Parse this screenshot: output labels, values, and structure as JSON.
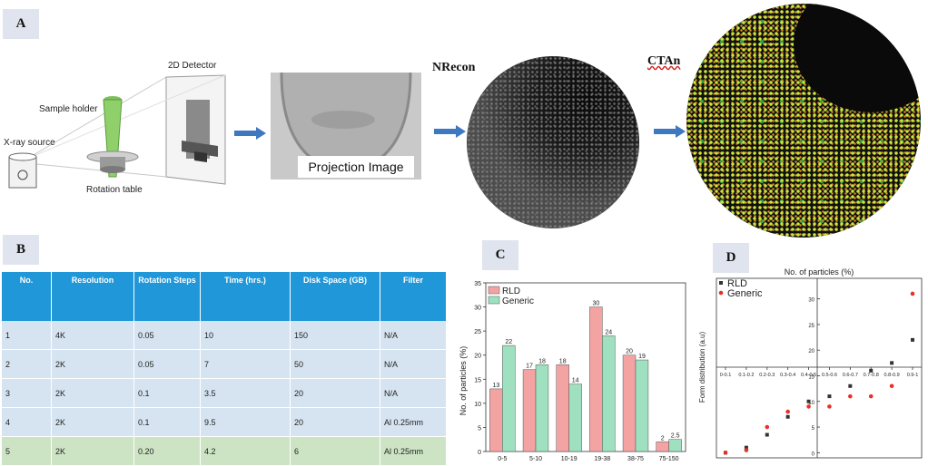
{
  "panels": {
    "a": "A",
    "b": "B",
    "c": "C",
    "d": "D"
  },
  "schematic": {
    "detector": "2D Detector",
    "sample_holder": "Sample holder",
    "xray_source": "X-ray source",
    "rotation_table": "Rotation table",
    "projection": "Projection Image",
    "nrecon": "NRecon",
    "ctan": "CTAn"
  },
  "table": {
    "headers": [
      "No.",
      "Resolution",
      "Rotation Steps",
      "Time (hrs.)",
      "Disk Space (GB)",
      "Filter"
    ],
    "rows": [
      [
        "1",
        "4K",
        "0.05",
        "10",
        "150",
        "N/A"
      ],
      [
        "2",
        "2K",
        "0.05",
        "7",
        "50",
        "N/A"
      ],
      [
        "3",
        "2K",
        "0.1",
        "3.5",
        "20",
        "N/A"
      ],
      [
        "4",
        "2K",
        "0.1",
        "9.5",
        "20",
        "Al 0.25mm"
      ],
      [
        "5",
        "2K",
        "0.20",
        "4.2",
        "6",
        "Al 0.25mm"
      ]
    ]
  },
  "chart_data": [
    {
      "type": "bar",
      "ylabel": "No. of particles (%)",
      "categories": [
        "0-5",
        "5-10",
        "10-19",
        "19-38",
        "38-75",
        "75-150"
      ],
      "ylim": [
        0,
        35
      ],
      "yticks": [
        "0",
        "5",
        "10",
        "15",
        "20",
        "25",
        "30",
        "35"
      ],
      "legend": "top-left",
      "series": [
        {
          "name": "RLD",
          "color": "#f4a3a3",
          "values": [
            13,
            17,
            18,
            30,
            20,
            2
          ],
          "labels": [
            "13",
            "17",
            "18",
            "30",
            "20",
            "2"
          ]
        },
        {
          "name": "Generic",
          "color": "#9ee0bf",
          "values": [
            22,
            18,
            14,
            24,
            19,
            2.5
          ],
          "labels": [
            "22",
            "18",
            "14",
            "24",
            "19",
            "2.5"
          ]
        }
      ]
    },
    {
      "type": "scatter",
      "title": "No. of particles (%)",
      "ylabel": "Form distribution (a.u)",
      "categories": [
        "0-0.1",
        "0.1-0.2",
        "0.2-0.3",
        "0.3-0.4",
        "0.4-0.5",
        "0.5-0.6",
        "0.6-0.7",
        "0.7-0.8",
        "0.8-0.9",
        "0.9-1"
      ],
      "yticks": [
        "0",
        "5",
        "10",
        "15",
        "20",
        "25",
        "30"
      ],
      "legend": "top-left",
      "series": [
        {
          "name": "RLD",
          "color": "#333333",
          "values": [
            0,
            1,
            3.5,
            7,
            10,
            11,
            13,
            16,
            17.5,
            22
          ]
        },
        {
          "name": "Generic",
          "color": "#e8302a",
          "values": [
            0,
            0.5,
            5,
            8,
            9,
            9,
            11,
            11,
            13,
            31
          ]
        }
      ]
    }
  ]
}
